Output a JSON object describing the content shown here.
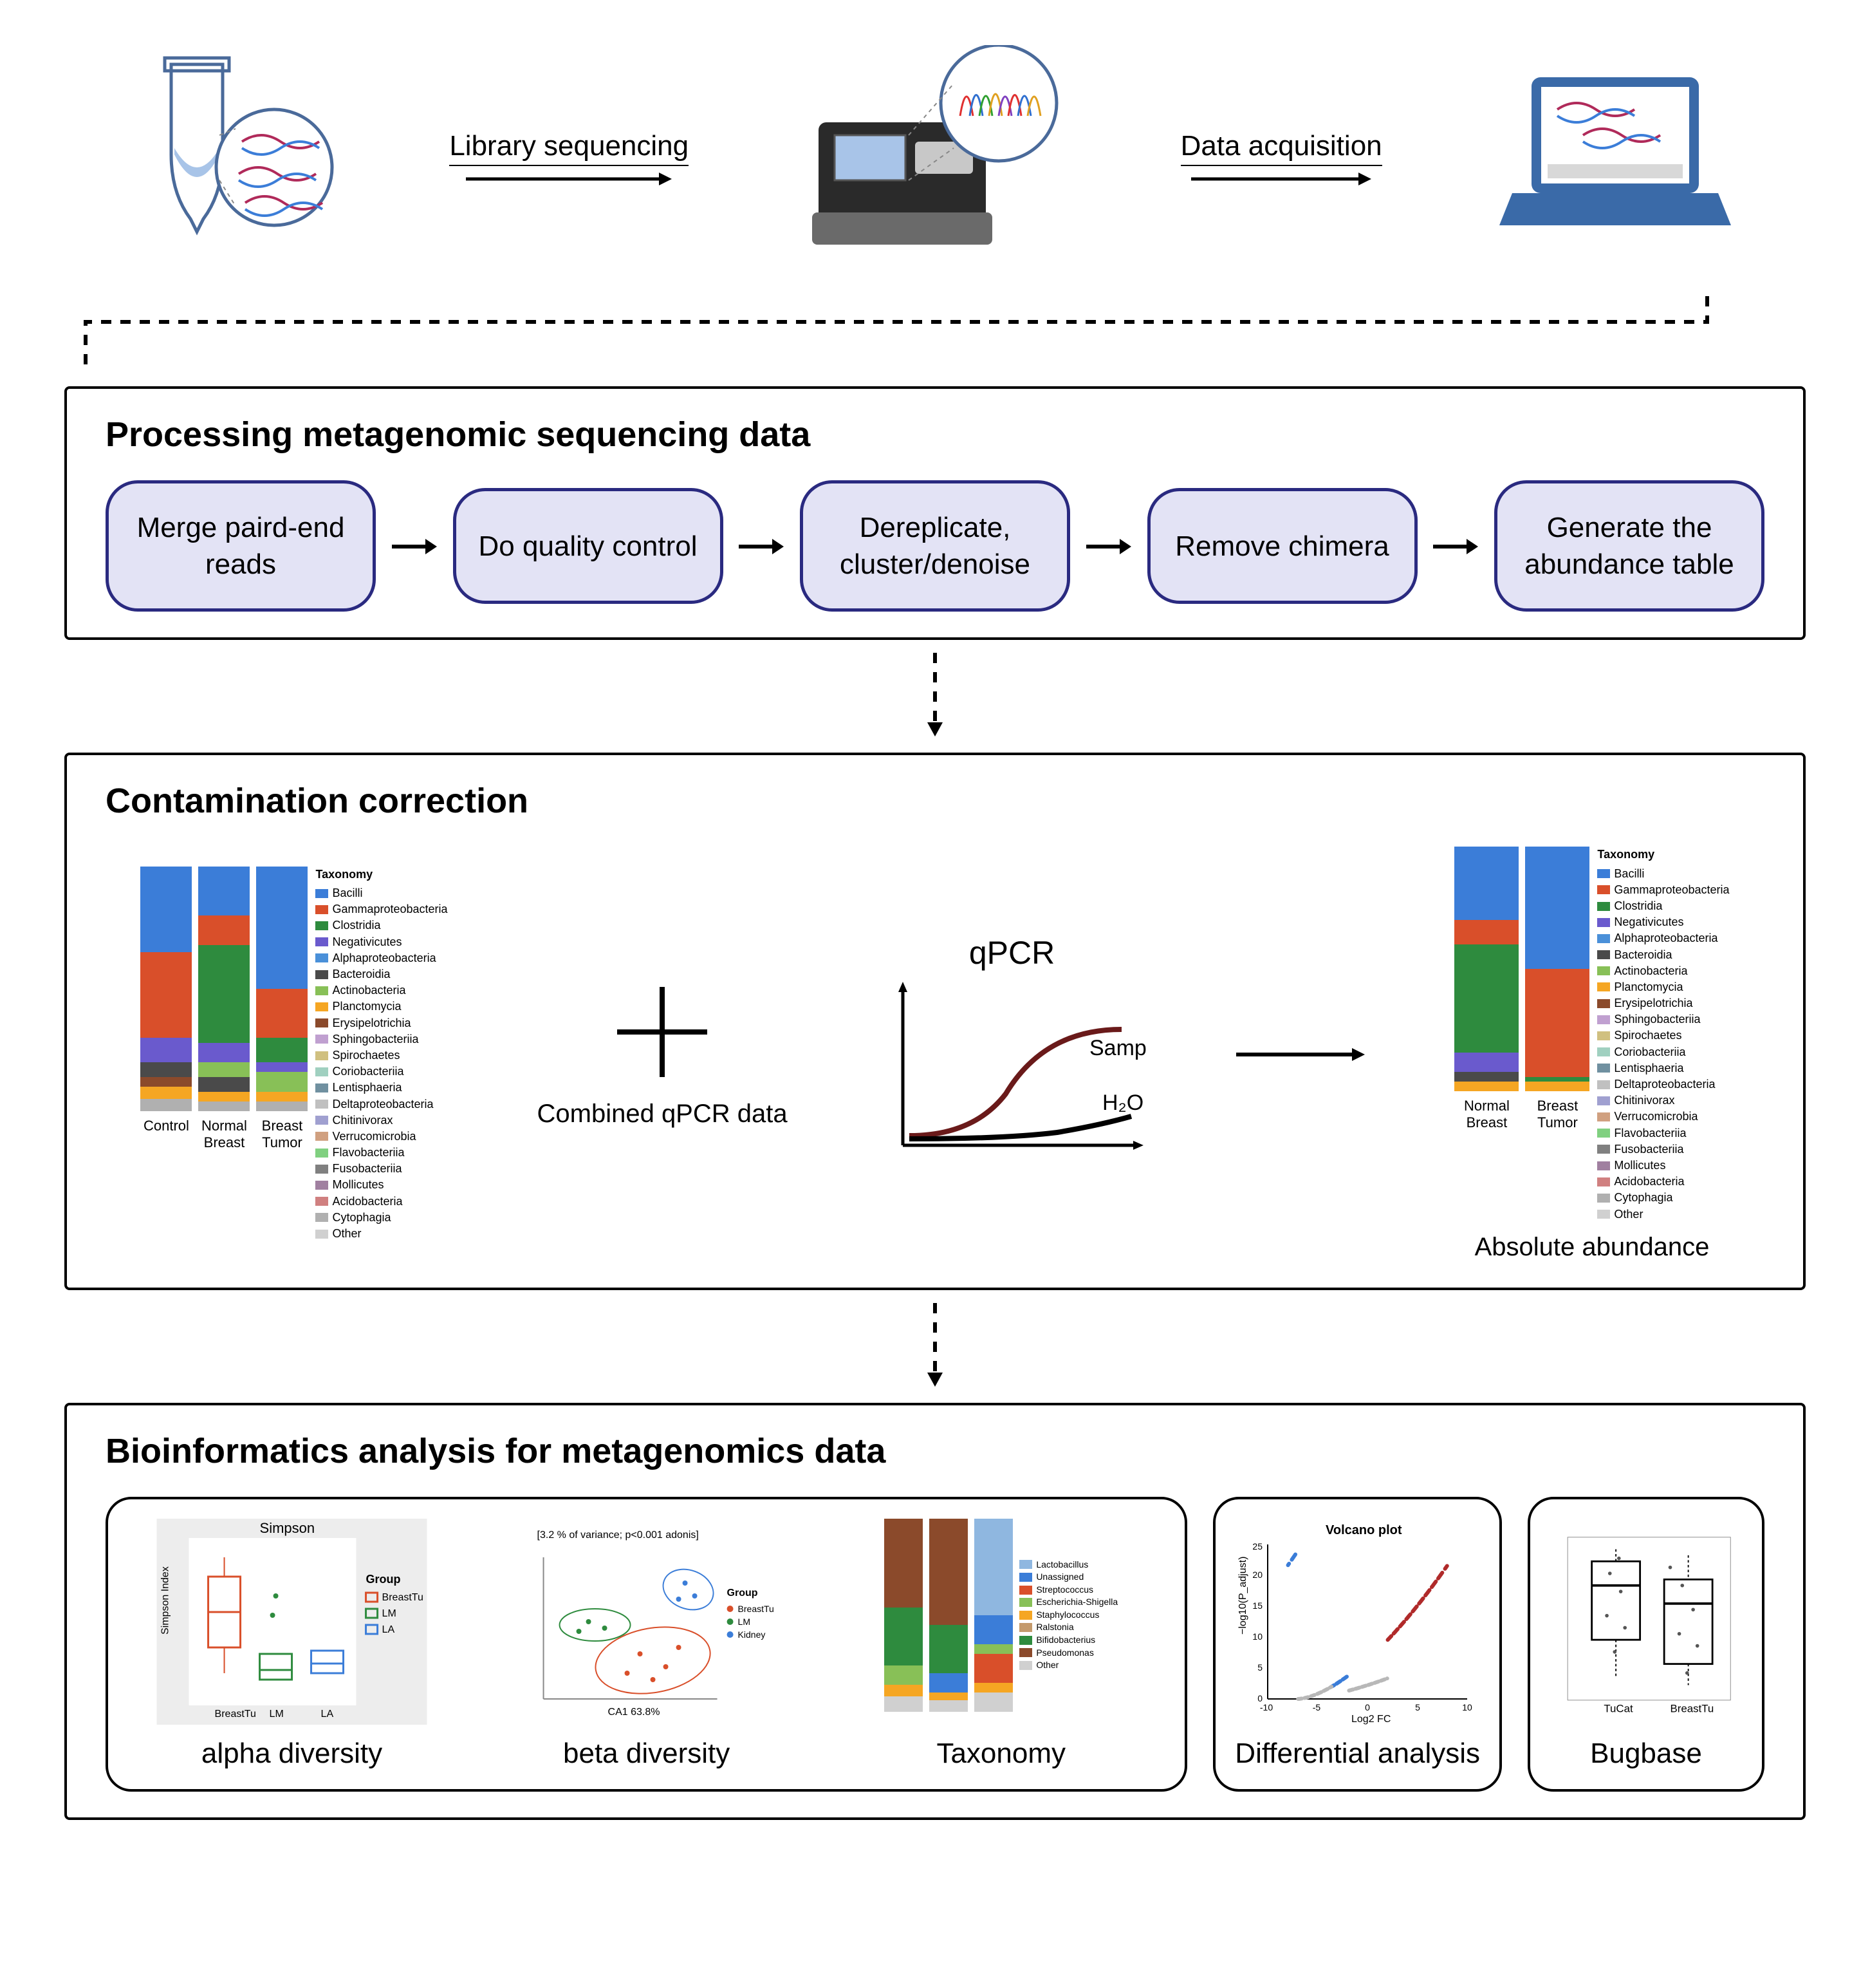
{
  "top": {
    "label1": "Library sequencing",
    "label2": "Data acquisition"
  },
  "processing": {
    "title": "Processing metagenomic sequencing data",
    "steps": [
      "Merge paird-end reads",
      "Do quality control",
      "Dereplicate, cluster/denoise",
      "Remove chimera",
      "Generate the abundance table"
    ]
  },
  "contamination": {
    "title": "Contamination correction",
    "combined_label": "Combined qPCR data",
    "qpcr_title": "qPCR",
    "qpcr_sample": "Sample",
    "qpcr_h2o": "H₂O",
    "abs_abundance": "Absolute abundance",
    "chart1": {
      "categories": [
        "Control",
        "Normal Breast",
        "Breast Tumor"
      ],
      "bars": [
        [
          {
            "h": 0.05,
            "c": "#b0b0b0"
          },
          {
            "h": 0.05,
            "c": "#f5a623"
          },
          {
            "h": 0.04,
            "c": "#8b4a2b"
          },
          {
            "h": 0.06,
            "c": "#4a4a4a"
          },
          {
            "h": 0.1,
            "c": "#6a5acd"
          },
          {
            "h": 0.35,
            "c": "#d94f2a"
          },
          {
            "h": 0.35,
            "c": "#3b7dd8"
          }
        ],
        [
          {
            "h": 0.04,
            "c": "#b0b0b0"
          },
          {
            "h": 0.04,
            "c": "#f5a623"
          },
          {
            "h": 0.06,
            "c": "#4a4a4a"
          },
          {
            "h": 0.06,
            "c": "#88c057"
          },
          {
            "h": 0.08,
            "c": "#6a5acd"
          },
          {
            "h": 0.4,
            "c": "#2e8b3e"
          },
          {
            "h": 0.12,
            "c": "#d94f2a"
          },
          {
            "h": 0.2,
            "c": "#3b7dd8"
          }
        ],
        [
          {
            "h": 0.04,
            "c": "#b0b0b0"
          },
          {
            "h": 0.04,
            "c": "#f5a623"
          },
          {
            "h": 0.08,
            "c": "#88c057"
          },
          {
            "h": 0.04,
            "c": "#6a5acd"
          },
          {
            "h": 0.1,
            "c": "#2e8b3e"
          },
          {
            "h": 0.2,
            "c": "#d94f2a"
          },
          {
            "h": 0.5,
            "c": "#3b7dd8"
          }
        ]
      ]
    },
    "chart2": {
      "categories": [
        "Normal Breast",
        "Breast Tumor"
      ],
      "bars": [
        [
          {
            "h": 0.04,
            "c": "#f5a623"
          },
          {
            "h": 0.04,
            "c": "#4a4a4a"
          },
          {
            "h": 0.08,
            "c": "#6a5acd"
          },
          {
            "h": 0.44,
            "c": "#2e8b3e"
          },
          {
            "h": 0.1,
            "c": "#d94f2a"
          },
          {
            "h": 0.3,
            "c": "#3b7dd8"
          }
        ],
        [
          {
            "h": 0.04,
            "c": "#f5a623"
          },
          {
            "h": 0.02,
            "c": "#2e8b3e"
          },
          {
            "h": 0.44,
            "c": "#d94f2a"
          },
          {
            "h": 0.5,
            "c": "#3b7dd8"
          }
        ]
      ]
    },
    "taxonomy_legend": {
      "title": "Taxonomy",
      "items": [
        {
          "c": "#3b7dd8",
          "t": "Bacilli"
        },
        {
          "c": "#d94f2a",
          "t": "Gammaproteobacteria"
        },
        {
          "c": "#2e8b3e",
          "t": "Clostridia"
        },
        {
          "c": "#6a5acd",
          "t": "Negativicutes"
        },
        {
          "c": "#4a90d9",
          "t": "Alphaproteobacteria"
        },
        {
          "c": "#4a4a4a",
          "t": "Bacteroidia"
        },
        {
          "c": "#88c057",
          "t": "Actinobacteria"
        },
        {
          "c": "#f5a623",
          "t": "Planctomycia"
        },
        {
          "c": "#8b4a2b",
          "t": "Erysipelotrichia"
        },
        {
          "c": "#c0a0d0",
          "t": "Sphingobacteriia"
        },
        {
          "c": "#d0c080",
          "t": "Spirochaetes"
        },
        {
          "c": "#a0d0c0",
          "t": "Coriobacteriia"
        },
        {
          "c": "#7090a0",
          "t": "Lentisphaeria"
        },
        {
          "c": "#c0c0c0",
          "t": "Deltaproteobacteria"
        },
        {
          "c": "#a0a0d0",
          "t": "Chitinivorax"
        },
        {
          "c": "#d0a080",
          "t": "Verrucomicrobia"
        },
        {
          "c": "#80d080",
          "t": "Flavobacteriia"
        },
        {
          "c": "#808080",
          "t": "Fusobacteriia"
        },
        {
          "c": "#a080a0",
          "t": "Mollicutes"
        },
        {
          "c": "#d08080",
          "t": "Acidobacteria"
        },
        {
          "c": "#b0b0b0",
          "t": "Cytophagia"
        },
        {
          "c": "#d0d0d0",
          "t": "Other"
        }
      ]
    }
  },
  "bioinformatics": {
    "title": "Bioinformatics analysis for metagenomics data",
    "alpha": {
      "label": "alpha diversity",
      "title": "Simpson",
      "ylab": "Simpson Index",
      "groups": [
        "BreastTu",
        "LM",
        "LA"
      ],
      "colors": [
        "#d94f2a",
        "#2e8b3e",
        "#3b7dd8"
      ],
      "legend_title": "Group",
      "medians": [
        0.55,
        0.28,
        0.3
      ],
      "q1": [
        0.35,
        0.22,
        0.25
      ],
      "q3": [
        0.8,
        0.35,
        0.38
      ],
      "ylim": [
        0.25,
        1.0
      ]
    },
    "beta": {
      "label": "beta diversity",
      "title": "[3.2 % of variance; p<0.001 adonis]",
      "groups": [
        "BreastTu",
        "LM",
        "Kidney"
      ],
      "colors": [
        "#d94f2a",
        "#2e8b3e",
        "#3b7dd8"
      ],
      "xlab": "CA1 63.8%"
    },
    "taxonomy": {
      "label": "Taxonomy",
      "bars": [
        [
          {
            "h": 0.08,
            "c": "#d0d0d0"
          },
          {
            "h": 0.06,
            "c": "#f5a623"
          },
          {
            "h": 0.1,
            "c": "#88c057"
          },
          {
            "h": 0.3,
            "c": "#2e8b3e"
          },
          {
            "h": 0.46,
            "c": "#8b4a2b"
          }
        ],
        [
          {
            "h": 0.06,
            "c": "#d0d0d0"
          },
          {
            "h": 0.04,
            "c": "#f5a623"
          },
          {
            "h": 0.1,
            "c": "#3b7dd8"
          },
          {
            "h": 0.25,
            "c": "#2e8b3e"
          },
          {
            "h": 0.55,
            "c": "#8b4a2b"
          }
        ],
        [
          {
            "h": 0.1,
            "c": "#d0d0d0"
          },
          {
            "h": 0.05,
            "c": "#f5a623"
          },
          {
            "h": 0.15,
            "c": "#d94f2a"
          },
          {
            "h": 0.05,
            "c": "#88c057"
          },
          {
            "h": 0.15,
            "c": "#3b7dd8"
          },
          {
            "h": 0.5,
            "c": "#8fb7e0"
          }
        ]
      ],
      "legend": [
        {
          "c": "#8fb7e0",
          "t": "Lactobacillus"
        },
        {
          "c": "#3b7dd8",
          "t": "Unassigned"
        },
        {
          "c": "#d94f2a",
          "t": "Streptococcus"
        },
        {
          "c": "#88c057",
          "t": "Escherichia-Shigella"
        },
        {
          "c": "#f5a623",
          "t": "Staphylococcus"
        },
        {
          "c": "#c49a6c",
          "t": "Ralstonia"
        },
        {
          "c": "#2e8b3e",
          "t": "Bifidobacterius"
        },
        {
          "c": "#8b4a2b",
          "t": "Pseudomonas"
        },
        {
          "c": "#d0d0d0",
          "t": "Other"
        }
      ]
    },
    "diff": {
      "label": "Differential analysis",
      "title": "Volcano plot",
      "xlab": "Log2 FC",
      "ylab": "−log10(P_adjust)",
      "xlim": [
        -10,
        10
      ],
      "ylim": [
        0,
        25
      ],
      "colors": {
        "down": "#3b7dd8",
        "ns": "#b8b8b8",
        "up": "#b02a2a"
      }
    },
    "bugbase": {
      "label": "Bugbase",
      "groups": [
        "TuCat",
        "BreastTu"
      ]
    }
  }
}
